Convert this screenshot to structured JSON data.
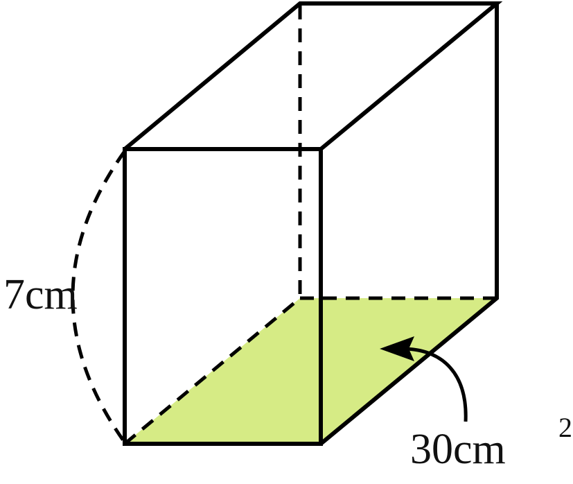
{
  "height_label": "7cm",
  "area_label": {
    "text": "30cm",
    "exponent": "2"
  }
}
